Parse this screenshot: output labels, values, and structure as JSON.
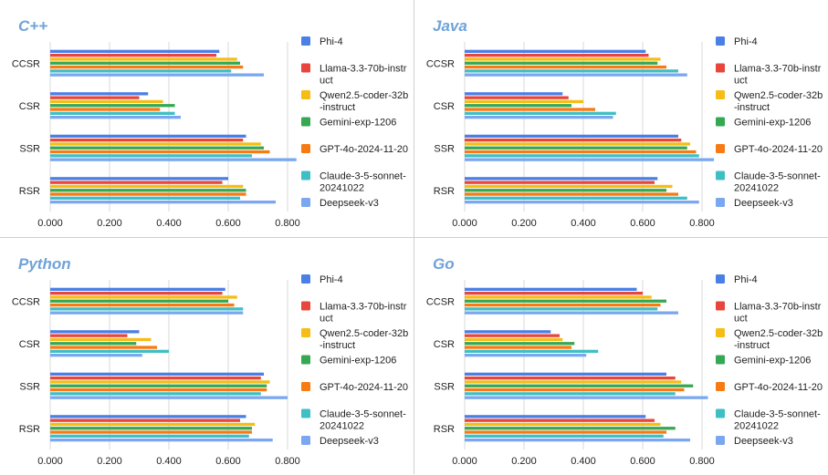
{
  "colors": {
    "series": [
      "#4a7fe6",
      "#e8453c",
      "#f5bd16",
      "#36a853",
      "#f77a12",
      "#3fbfc4",
      "#7ba7f0"
    ],
    "title": "#6fa3d9",
    "grid": "#d9d9d9"
  },
  "chart_data": [
    {
      "type": "bar",
      "orientation": "horizontal",
      "title": "C++",
      "categories": [
        "CCSR",
        "CSR",
        "SSR",
        "RSR"
      ],
      "xlim": [
        0,
        0.8
      ],
      "xticks": [
        "0.000",
        "0.200",
        "0.400",
        "0.600",
        "0.800"
      ],
      "legend_position": "right",
      "series": [
        {
          "name": "Phi-4",
          "values": [
            0.57,
            0.33,
            0.66,
            0.6
          ]
        },
        {
          "name": "Llama-3.3-70b-instr uct",
          "values": [
            0.56,
            0.3,
            0.65,
            0.58
          ]
        },
        {
          "name": "Qwen2.5-coder-32b -instruct",
          "values": [
            0.63,
            0.38,
            0.71,
            0.65
          ]
        },
        {
          "name": "Gemini-exp-1206",
          "values": [
            0.64,
            0.42,
            0.72,
            0.66
          ]
        },
        {
          "name": "GPT-4o-2024-11-20",
          "values": [
            0.65,
            0.37,
            0.74,
            0.66
          ]
        },
        {
          "name": "Claude-3-5-sonnet- 20241022",
          "values": [
            0.61,
            0.42,
            0.68,
            0.64
          ]
        },
        {
          "name": "Deepseek-v3",
          "values": [
            0.72,
            0.44,
            0.83,
            0.76
          ]
        }
      ]
    },
    {
      "type": "bar",
      "orientation": "horizontal",
      "title": "Java",
      "categories": [
        "CCSR",
        "CSR",
        "SSR",
        "RSR"
      ],
      "xlim": [
        0,
        0.8
      ],
      "xticks": [
        "0.000",
        "0.200",
        "0.400",
        "0.600",
        "0.800"
      ],
      "legend_position": "right",
      "series": [
        {
          "name": "Phi-4",
          "values": [
            0.61,
            0.33,
            0.72,
            0.65
          ]
        },
        {
          "name": "Llama-3.3-70b-instr uct",
          "values": [
            0.62,
            0.35,
            0.73,
            0.64
          ]
        },
        {
          "name": "Qwen2.5-coder-32b -instruct",
          "values": [
            0.66,
            0.4,
            0.76,
            0.7
          ]
        },
        {
          "name": "Gemini-exp-1206",
          "values": [
            0.65,
            0.36,
            0.75,
            0.68
          ]
        },
        {
          "name": "GPT-4o-2024-11-20",
          "values": [
            0.68,
            0.44,
            0.78,
            0.72
          ]
        },
        {
          "name": "Claude-3-5-sonnet- 20241022",
          "values": [
            0.72,
            0.51,
            0.79,
            0.75
          ]
        },
        {
          "name": "Deepseek-v3",
          "values": [
            0.75,
            0.5,
            0.84,
            0.79
          ]
        }
      ]
    },
    {
      "type": "bar",
      "orientation": "horizontal",
      "title": "Python",
      "categories": [
        "CCSR",
        "CSR",
        "SSR",
        "RSR"
      ],
      "xlim": [
        0,
        0.8
      ],
      "xticks": [
        "0.000",
        "0.200",
        "0.400",
        "0.600",
        "0.800"
      ],
      "legend_position": "right",
      "series": [
        {
          "name": "Phi-4",
          "values": [
            0.59,
            0.3,
            0.72,
            0.66
          ]
        },
        {
          "name": "Llama-3.3-70b-instr uct",
          "values": [
            0.58,
            0.26,
            0.71,
            0.64
          ]
        },
        {
          "name": "Qwen2.5-coder-32b -instruct",
          "values": [
            0.63,
            0.34,
            0.74,
            0.69
          ]
        },
        {
          "name": "Gemini-exp-1206",
          "values": [
            0.6,
            0.29,
            0.73,
            0.68
          ]
        },
        {
          "name": "GPT-4o-2024-11-20",
          "values": [
            0.62,
            0.36,
            0.73,
            0.68
          ]
        },
        {
          "name": "Claude-3-5-sonnet- 20241022",
          "values": [
            0.65,
            0.4,
            0.71,
            0.67
          ]
        },
        {
          "name": "Deepseek-v3",
          "values": [
            0.65,
            0.31,
            0.8,
            0.75
          ]
        }
      ]
    },
    {
      "type": "bar",
      "orientation": "horizontal",
      "title": "Go",
      "categories": [
        "CCSR",
        "CSR",
        "SSR",
        "RSR"
      ],
      "xlim": [
        0,
        0.8
      ],
      "xticks": [
        "0.000",
        "0.200",
        "0.400",
        "0.600",
        "0.800"
      ],
      "legend_position": "right",
      "series": [
        {
          "name": "Phi-4",
          "values": [
            0.58,
            0.29,
            0.68,
            0.61
          ]
        },
        {
          "name": "Llama-3.3-70b-instr uct",
          "values": [
            0.6,
            0.32,
            0.71,
            0.64
          ]
        },
        {
          "name": "Qwen2.5-coder-32b -instruct",
          "values": [
            0.63,
            0.33,
            0.73,
            0.66
          ]
        },
        {
          "name": "Gemini-exp-1206",
          "values": [
            0.68,
            0.37,
            0.77,
            0.71
          ]
        },
        {
          "name": "GPT-4o-2024-11-20",
          "values": [
            0.66,
            0.36,
            0.74,
            0.68
          ]
        },
        {
          "name": "Claude-3-5-sonnet- 20241022",
          "values": [
            0.65,
            0.45,
            0.71,
            0.67
          ]
        },
        {
          "name": "Deepseek-v3",
          "values": [
            0.72,
            0.41,
            0.82,
            0.76
          ]
        }
      ]
    }
  ]
}
